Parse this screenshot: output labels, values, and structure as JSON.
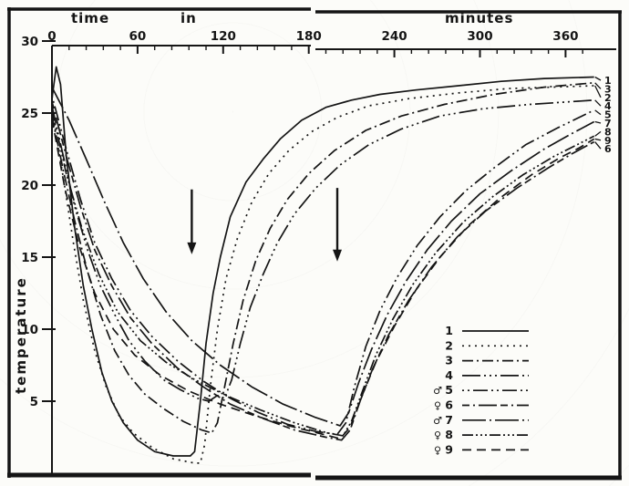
{
  "figure": {
    "x_axis": {
      "word_time": "time",
      "word_in": "in",
      "word_minutes": "minutes",
      "major_ticks": [
        0,
        60,
        120,
        180,
        240,
        300,
        360
      ],
      "minor_step_minutes": 12,
      "max_minutes": 380
    },
    "y_axis": {
      "label": "temperature",
      "major_ticks": [
        30,
        25,
        20,
        15,
        10,
        5
      ],
      "min": 0,
      "max": 30
    },
    "ink_color": "#151515",
    "paper_color": "#fcfcf9"
  },
  "chart_data": {
    "type": "line",
    "title": "",
    "xlabel": "time in minutes",
    "ylabel": "temperature",
    "xlim": [
      0,
      380
    ],
    "ylim": [
      0,
      30
    ],
    "grid": false,
    "legend_position": "lower right",
    "annotations": [
      {
        "kind": "down-arrow",
        "t": 98,
        "temp_top": 19.7,
        "temp_tip": 15.2
      },
      {
        "kind": "down-arrow",
        "t": 200,
        "temp_top": 19.8,
        "temp_tip": 14.7
      }
    ],
    "end_labels_top_to_bottom": [
      "1",
      "3",
      "2",
      "4",
      "5",
      "7",
      "8",
      "9",
      "6"
    ],
    "legend": [
      {
        "number": "1",
        "sex": ""
      },
      {
        "number": "2",
        "sex": ""
      },
      {
        "number": "3",
        "sex": ""
      },
      {
        "number": "4",
        "sex": ""
      },
      {
        "number": "5",
        "sex": "♂"
      },
      {
        "number": "6",
        "sex": "♀"
      },
      {
        "number": "7",
        "sex": "♂"
      },
      {
        "number": "8",
        "sex": "♀"
      },
      {
        "number": "9",
        "sex": "♀"
      }
    ],
    "series": [
      {
        "id": "1",
        "name": "1",
        "sex": "",
        "dash": "solid",
        "points": [
          [
            0,
            26
          ],
          [
            3,
            28.2
          ],
          [
            6,
            27
          ],
          [
            10,
            22
          ],
          [
            16,
            17
          ],
          [
            22,
            13
          ],
          [
            28,
            10
          ],
          [
            35,
            7
          ],
          [
            42,
            5
          ],
          [
            50,
            3.5
          ],
          [
            60,
            2.3
          ],
          [
            72,
            1.5
          ],
          [
            85,
            1.2
          ],
          [
            97,
            1.2
          ],
          [
            100,
            1.5
          ],
          [
            104,
            5
          ],
          [
            108,
            9
          ],
          [
            113,
            12.5
          ],
          [
            118,
            15
          ],
          [
            125,
            17.8
          ],
          [
            136,
            20.2
          ],
          [
            148,
            21.8
          ],
          [
            160,
            23.2
          ],
          [
            175,
            24.5
          ],
          [
            192,
            25.4
          ],
          [
            210,
            25.9
          ],
          [
            230,
            26.3
          ],
          [
            255,
            26.6
          ],
          [
            285,
            26.9
          ],
          [
            315,
            27.2
          ],
          [
            345,
            27.4
          ],
          [
            380,
            27.5
          ]
        ]
      },
      {
        "id": "2",
        "name": "2",
        "sex": "",
        "dash": "dotted",
        "points": [
          [
            0,
            25.2
          ],
          [
            8,
            20.5
          ],
          [
            15,
            16
          ],
          [
            22,
            12
          ],
          [
            30,
            8.5
          ],
          [
            38,
            6
          ],
          [
            47,
            4
          ],
          [
            57,
            2.8
          ],
          [
            70,
            1.8
          ],
          [
            85,
            1
          ],
          [
            100,
            0.7
          ],
          [
            104,
            0.7
          ],
          [
            107,
            2
          ],
          [
            111,
            6
          ],
          [
            116,
            10
          ],
          [
            122,
            13.5
          ],
          [
            130,
            16.3
          ],
          [
            140,
            18.8
          ],
          [
            152,
            20.8
          ],
          [
            166,
            22.4
          ],
          [
            182,
            23.7
          ],
          [
            200,
            24.7
          ],
          [
            222,
            25.5
          ],
          [
            250,
            26
          ],
          [
            285,
            26.4
          ],
          [
            320,
            26.7
          ],
          [
            350,
            26.8
          ],
          [
            380,
            26.9
          ]
        ]
      },
      {
        "id": "3",
        "name": "3",
        "sex": "",
        "dash": "dash-dot",
        "points": [
          [
            0,
            24.8
          ],
          [
            8,
            21
          ],
          [
            16,
            17.5
          ],
          [
            25,
            14
          ],
          [
            34,
            11
          ],
          [
            44,
            8.5
          ],
          [
            54,
            6.8
          ],
          [
            65,
            5.5
          ],
          [
            78,
            4.5
          ],
          [
            92,
            3.6
          ],
          [
            105,
            3
          ],
          [
            112,
            2.8
          ],
          [
            116,
            3.5
          ],
          [
            121,
            6
          ],
          [
            127,
            9
          ],
          [
            134,
            12
          ],
          [
            143,
            14.8
          ],
          [
            153,
            17
          ],
          [
            165,
            19
          ],
          [
            180,
            20.8
          ],
          [
            198,
            22.4
          ],
          [
            220,
            23.8
          ],
          [
            245,
            24.8
          ],
          [
            275,
            25.6
          ],
          [
            310,
            26.3
          ],
          [
            345,
            26.8
          ],
          [
            380,
            27.1
          ]
        ]
      },
      {
        "id": "4",
        "name": "4",
        "sex": "",
        "dash": "dash-dot-dot-dot",
        "points": [
          [
            0,
            25.5
          ],
          [
            8,
            22
          ],
          [
            16,
            18.5
          ],
          [
            25,
            15.5
          ],
          [
            34,
            13
          ],
          [
            44,
            11
          ],
          [
            54,
            9.2
          ],
          [
            65,
            7.8
          ],
          [
            78,
            6.5
          ],
          [
            90,
            5.8
          ],
          [
            102,
            5.2
          ],
          [
            110,
            5
          ],
          [
            116,
            5.4
          ],
          [
            121,
            5.2
          ],
          [
            126,
            6.5
          ],
          [
            132,
            9
          ],
          [
            139,
            11.5
          ],
          [
            148,
            13.8
          ],
          [
            158,
            16
          ],
          [
            170,
            18
          ],
          [
            185,
            19.8
          ],
          [
            202,
            21.4
          ],
          [
            222,
            22.8
          ],
          [
            245,
            23.9
          ],
          [
            272,
            24.8
          ],
          [
            302,
            25.3
          ],
          [
            335,
            25.6
          ],
          [
            380,
            25.9
          ]
        ]
      },
      {
        "id": "5",
        "name": "5",
        "sex": "♂",
        "dash": "dot-dot-dash",
        "points": [
          [
            0,
            26.2
          ],
          [
            10,
            22.5
          ],
          [
            20,
            19
          ],
          [
            30,
            16
          ],
          [
            42,
            13.5
          ],
          [
            55,
            11.3
          ],
          [
            70,
            9.5
          ],
          [
            88,
            7.8
          ],
          [
            106,
            6.4
          ],
          [
            125,
            5.2
          ],
          [
            145,
            4.2
          ],
          [
            165,
            3.4
          ],
          [
            185,
            2.9
          ],
          [
            200,
            2.7
          ],
          [
            206,
            3.5
          ],
          [
            212,
            6
          ],
          [
            220,
            8.8
          ],
          [
            230,
            11.3
          ],
          [
            242,
            13.6
          ],
          [
            256,
            15.8
          ],
          [
            272,
            17.8
          ],
          [
            290,
            19.6
          ],
          [
            310,
            21.2
          ],
          [
            332,
            22.8
          ],
          [
            355,
            24
          ],
          [
            380,
            25.2
          ]
        ]
      },
      {
        "id": "6",
        "name": "6",
        "sex": "♀",
        "dash": "dash-dot-long",
        "points": [
          [
            0,
            25.8
          ],
          [
            10,
            22
          ],
          [
            20,
            18.5
          ],
          [
            30,
            15.5
          ],
          [
            42,
            13
          ],
          [
            55,
            10.8
          ],
          [
            70,
            9
          ],
          [
            88,
            7.3
          ],
          [
            106,
            6
          ],
          [
            125,
            4.8
          ],
          [
            148,
            3.8
          ],
          [
            170,
            3
          ],
          [
            192,
            2.5
          ],
          [
            203,
            2.3
          ],
          [
            209,
            3
          ],
          [
            216,
            5
          ],
          [
            225,
            7.3
          ],
          [
            236,
            9.6
          ],
          [
            250,
            12
          ],
          [
            266,
            14.3
          ],
          [
            284,
            16.4
          ],
          [
            304,
            18.2
          ],
          [
            326,
            19.8
          ],
          [
            348,
            21.2
          ],
          [
            365,
            22.2
          ],
          [
            380,
            23
          ]
        ]
      },
      {
        "id": "7",
        "name": "7",
        "sex": "♂",
        "dash": "long-dash-dot",
        "points": [
          [
            0,
            26.8
          ],
          [
            12,
            24.5
          ],
          [
            24,
            21.8
          ],
          [
            37,
            18.8
          ],
          [
            50,
            16
          ],
          [
            64,
            13.5
          ],
          [
            80,
            11.2
          ],
          [
            98,
            9.2
          ],
          [
            118,
            7.5
          ],
          [
            140,
            6
          ],
          [
            162,
            4.8
          ],
          [
            184,
            3.9
          ],
          [
            202,
            3.3
          ],
          [
            208,
            4.2
          ],
          [
            215,
            6.3
          ],
          [
            224,
            8.6
          ],
          [
            235,
            11
          ],
          [
            248,
            13.3
          ],
          [
            263,
            15.5
          ],
          [
            280,
            17.5
          ],
          [
            300,
            19.4
          ],
          [
            322,
            21
          ],
          [
            345,
            22.5
          ],
          [
            363,
            23.5
          ],
          [
            380,
            24.4
          ]
        ]
      },
      {
        "id": "8",
        "name": "8",
        "sex": "♀",
        "dash": "dash-dot-dot-dot-short",
        "points": [
          [
            0,
            25.2
          ],
          [
            10,
            20.8
          ],
          [
            21,
            17
          ],
          [
            33,
            13.8
          ],
          [
            46,
            11.2
          ],
          [
            62,
            9.2
          ],
          [
            80,
            7.7
          ],
          [
            100,
            6.5
          ],
          [
            122,
            5.4
          ],
          [
            146,
            4.4
          ],
          [
            170,
            3.5
          ],
          [
            193,
            2.8
          ],
          [
            204,
            2.6
          ],
          [
            210,
            3.6
          ],
          [
            218,
            5.8
          ],
          [
            227,
            8.2
          ],
          [
            239,
            10.7
          ],
          [
            253,
            13.1
          ],
          [
            269,
            15.3
          ],
          [
            288,
            17.4
          ],
          [
            309,
            19.2
          ],
          [
            330,
            20.7
          ],
          [
            352,
            22
          ],
          [
            368,
            22.8
          ],
          [
            380,
            23.4
          ]
        ]
      },
      {
        "id": "9",
        "name": "9",
        "sex": "♀",
        "dash": "even-dash",
        "points": [
          [
            0,
            24.6
          ],
          [
            9,
            19.8
          ],
          [
            19,
            15.8
          ],
          [
            30,
            12.5
          ],
          [
            43,
            10
          ],
          [
            58,
            8.2
          ],
          [
            76,
            6.8
          ],
          [
            96,
            5.7
          ],
          [
            118,
            4.8
          ],
          [
            142,
            4
          ],
          [
            166,
            3.3
          ],
          [
            190,
            2.7
          ],
          [
            202,
            2.4
          ],
          [
            209,
            3.2
          ],
          [
            217,
            5.3
          ],
          [
            227,
            7.7
          ],
          [
            240,
            10.2
          ],
          [
            255,
            12.7
          ],
          [
            272,
            15
          ],
          [
            292,
            17.2
          ],
          [
            314,
            19.1
          ],
          [
            336,
            20.7
          ],
          [
            356,
            21.9
          ],
          [
            370,
            22.6
          ],
          [
            380,
            23.2
          ]
        ]
      }
    ]
  }
}
